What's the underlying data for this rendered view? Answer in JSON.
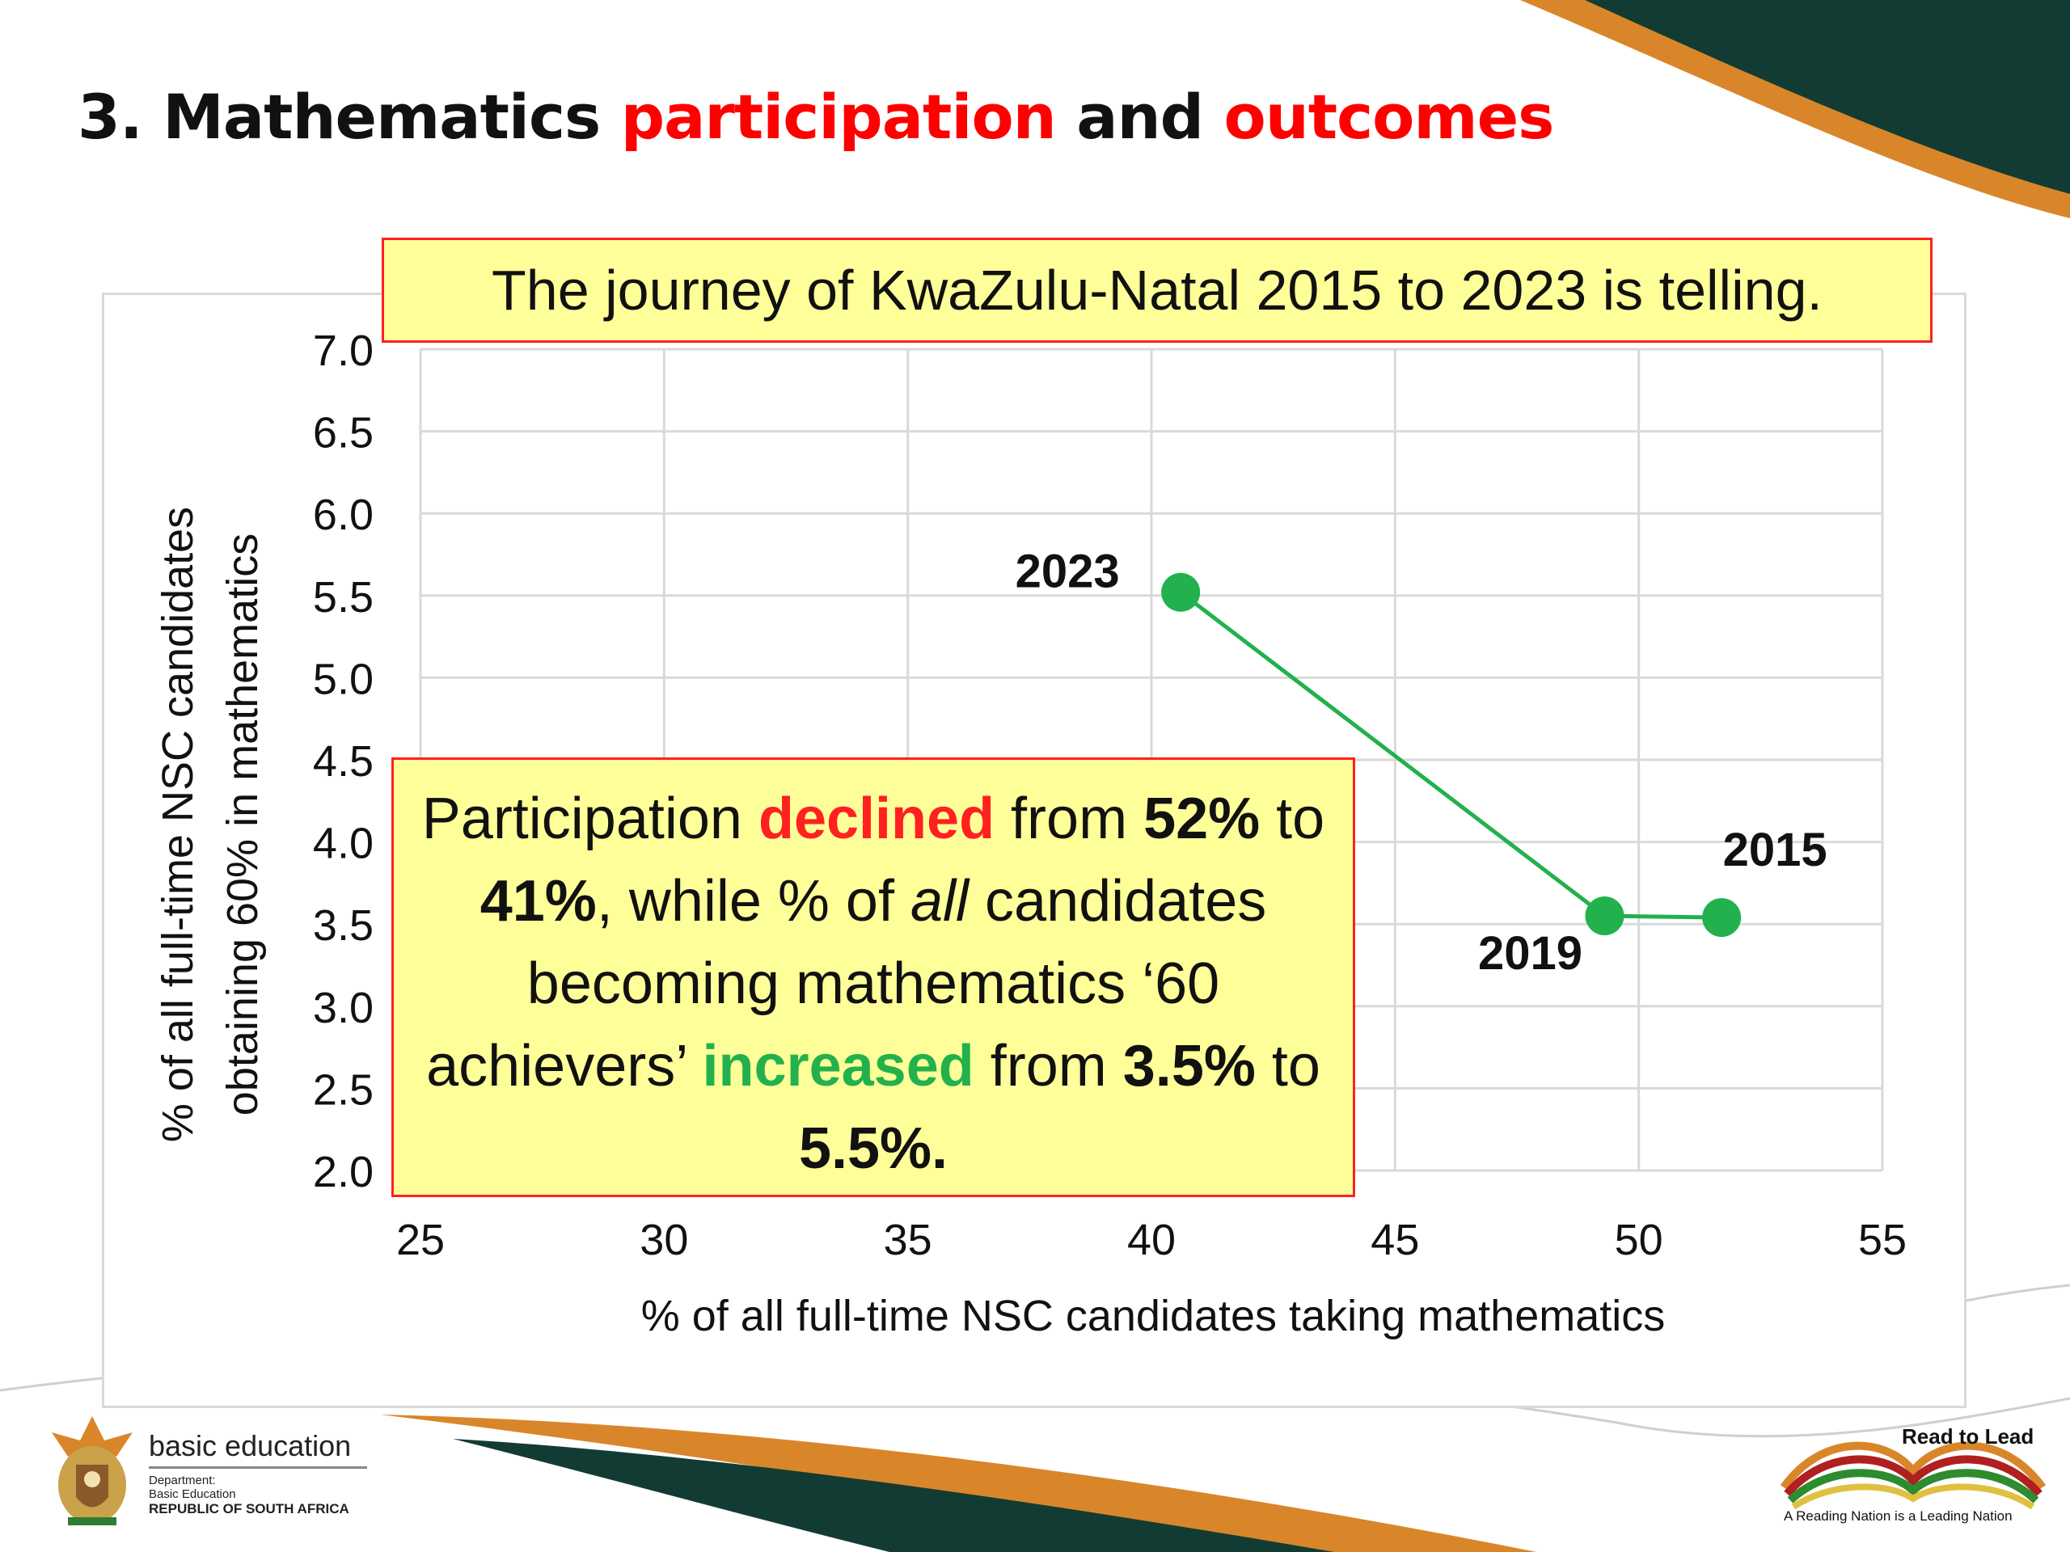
{
  "slide": {
    "title_prefix": "3. Mathematics ",
    "title_word1": "participation",
    "title_mid": " and ",
    "title_word2": "outcomes"
  },
  "callout_top": "The journey of KwaZulu-Natal 2015 to 2023 is telling.",
  "callout_main": {
    "t1": "Participation ",
    "t2": "declined",
    "t3": " from ",
    "t4": "52%",
    "t5": " to ",
    "t6": "41%",
    "t7": ", while % of ",
    "t8": "all",
    "t9": " candidates becoming mathematics ‘60 achievers’ ",
    "t10": "increased",
    "t11": " from ",
    "t12": "3.5%",
    "t13": " to ",
    "t14": "5.5%."
  },
  "chart_data": {
    "type": "line",
    "xlabel": "% of all full-time NSC candidates taking mathematics",
    "ylabel_line1": "% of all full-time NSC candidates",
    "ylabel_line2": "obtaining 60% in mathematics",
    "xlim": [
      25,
      55
    ],
    "ylim": [
      2.0,
      7.0
    ],
    "xticks": [
      "25",
      "30",
      "35",
      "40",
      "45",
      "50",
      "55"
    ],
    "yticks": [
      "2.0",
      "2.5",
      "3.0",
      "3.5",
      "4.0",
      "4.5",
      "5.0",
      "5.5",
      "6.0",
      "6.5",
      "7.0"
    ],
    "grid": true,
    "series": [
      {
        "color": "#22b14c",
        "points": [
          {
            "label": "2023",
            "x": 40.6,
            "y": 5.52
          },
          {
            "label": "2019",
            "x": 49.3,
            "y": 3.55
          },
          {
            "label": "2015",
            "x": 51.7,
            "y": 3.54
          }
        ]
      }
    ]
  },
  "footer": {
    "left_logo_name": "basic education",
    "left_logo_dept": "Department:",
    "left_logo_dept2": "Basic Education",
    "left_logo_country": "REPUBLIC OF SOUTH AFRICA",
    "right_logo_title": "Read to Lead",
    "right_logo_tagline": "A Reading Nation is a Leading Nation"
  },
  "colors": {
    "accent_red": "#ff0000",
    "accent_green": "#22b14c",
    "callout_fill": "#ffff99",
    "band_dark": "#123c33",
    "band_orange": "#d9862a"
  }
}
